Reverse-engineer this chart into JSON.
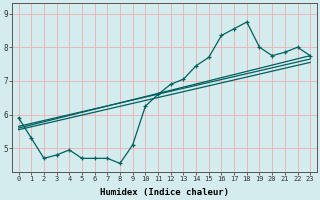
{
  "xlabel": "Humidex (Indice chaleur)",
  "bg_color": "#d4ecee",
  "grid_color": "#e8b8b8",
  "line_color": "#006060",
  "xlim": [
    -0.5,
    23.5
  ],
  "ylim": [
    4.3,
    9.3
  ],
  "yticks": [
    5,
    6,
    7,
    8,
    9
  ],
  "xticks": [
    0,
    1,
    2,
    3,
    4,
    5,
    6,
    7,
    8,
    9,
    10,
    11,
    12,
    13,
    14,
    15,
    16,
    17,
    18,
    19,
    20,
    21,
    22,
    23
  ],
  "series1_x": [
    0,
    1,
    2,
    3,
    4,
    5,
    6,
    7,
    8,
    9,
    10,
    11,
    12,
    13,
    14,
    15,
    16,
    17,
    18,
    19,
    20,
    21,
    22,
    23
  ],
  "series1_y": [
    5.9,
    5.3,
    4.7,
    4.8,
    4.95,
    4.7,
    4.7,
    4.7,
    4.55,
    5.1,
    6.25,
    6.6,
    6.9,
    7.05,
    7.45,
    7.7,
    8.35,
    8.55,
    8.75,
    8.0,
    7.75,
    7.85,
    8.0,
    7.75
  ],
  "trend1_x": [
    0,
    23
  ],
  "trend1_y": [
    5.55,
    7.55
  ],
  "trend2_x": [
    0,
    23
  ],
  "trend2_y": [
    5.6,
    7.75
  ],
  "trend3_x": [
    0,
    23
  ],
  "trend3_y": [
    5.65,
    7.65
  ]
}
